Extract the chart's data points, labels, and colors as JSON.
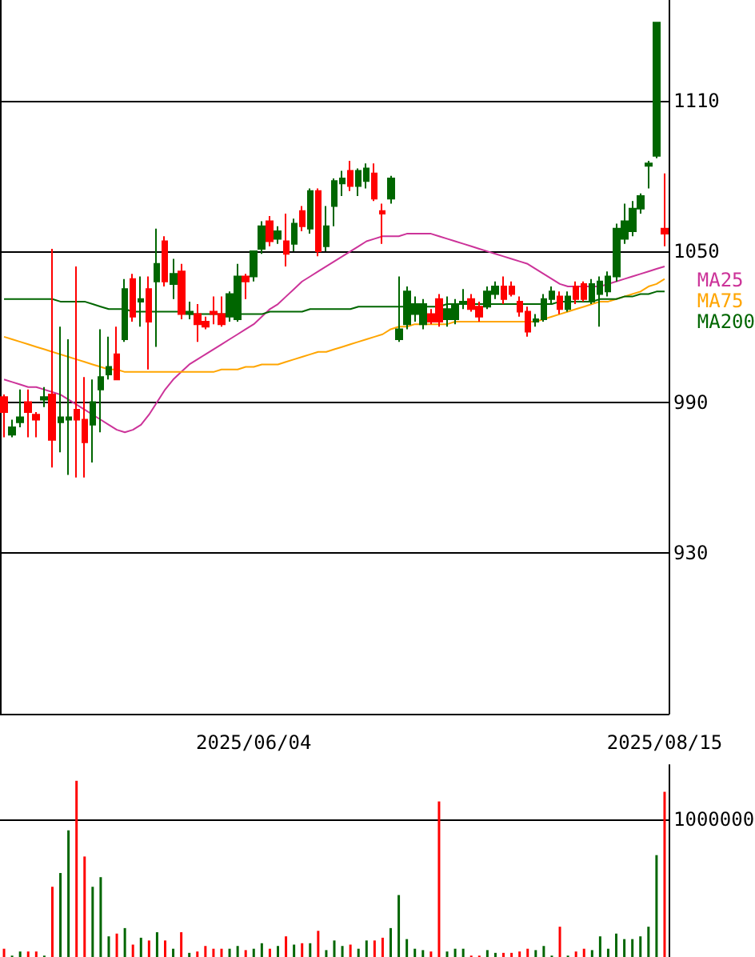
{
  "chart_data": [
    {
      "type": "candlestick",
      "categories": [
        null,
        null,
        null,
        null,
        null,
        null,
        null,
        null,
        null,
        null,
        null,
        null,
        null,
        null,
        null,
        null,
        null,
        null,
        null,
        null,
        null,
        null,
        null,
        null,
        null,
        null,
        null,
        null,
        null,
        null,
        null,
        "2025/06/04",
        null,
        null,
        null,
        null,
        null,
        null,
        null,
        null,
        null,
        null,
        null,
        null,
        null,
        null,
        null,
        null,
        null,
        null,
        null,
        null,
        null,
        null,
        null,
        null,
        null,
        null,
        null,
        null,
        null,
        null,
        null,
        null,
        null,
        null,
        null,
        null,
        null,
        null,
        null,
        null,
        null,
        null,
        null,
        null,
        null,
        null,
        null,
        null,
        null,
        null,
        "2025/08/15"
      ],
      "ohlc": [
        [
          992,
          993,
          976,
          986
        ],
        [
          977,
          983,
          976,
          980
        ],
        [
          982,
          995,
          980,
          984
        ],
        [
          990,
          995,
          976,
          986
        ],
        [
          985,
          986,
          976,
          983
        ],
        [
          991,
          996,
          988,
          992
        ],
        [
          993,
          1051,
          964,
          975
        ],
        [
          982,
          1020,
          970,
          984
        ],
        [
          983,
          1015,
          961,
          984
        ],
        [
          987,
          1044,
          960,
          983
        ],
        [
          983,
          1000,
          960,
          974
        ],
        [
          981,
          999,
          966,
          990
        ],
        [
          995,
          1019,
          978,
          1000
        ],
        [
          1001,
          1016,
          999,
          1004
        ],
        [
          1009,
          1020,
          999,
          999
        ],
        [
          1015,
          1039,
          1014,
          1035
        ],
        [
          1039,
          1041,
          1022,
          1024
        ],
        [
          1030,
          1040,
          1020,
          1031
        ],
        [
          1035,
          1040,
          1003,
          1022
        ],
        [
          1038,
          1059,
          1012,
          1045
        ],
        [
          1054,
          1056,
          1036,
          1038
        ],
        [
          1037,
          1047,
          1031,
          1041
        ],
        [
          1042,
          1045,
          1023,
          1025
        ],
        [
          1025,
          1030,
          1023,
          1026
        ],
        [
          1025,
          1029,
          1014,
          1021
        ],
        [
          1022,
          1024,
          1019,
          1020
        ],
        [
          1026,
          1032,
          1021,
          1025
        ],
        [
          1025,
          1032,
          1020,
          1021
        ],
        [
          1024,
          1034,
          1022,
          1033
        ],
        [
          1023,
          1045,
          1022,
          1040
        ],
        [
          1040,
          1041,
          1031,
          1038
        ],
        [
          1040,
          1050,
          1038,
          1050
        ],
        [
          1051,
          1062,
          1049,
          1060
        ],
        [
          1062,
          1064,
          1052,
          1054
        ],
        [
          1055,
          1060,
          1053,
          1058
        ],
        [
          1054,
          1065,
          1044,
          1049
        ],
        [
          1053,
          1063,
          1050,
          1061
        ],
        [
          1066,
          1068,
          1058,
          1060
        ],
        [
          1059,
          1075,
          1057,
          1074
        ],
        [
          1074,
          1075,
          1048,
          1050
        ],
        [
          1052,
          1068,
          1050,
          1060
        ],
        [
          1068,
          1079,
          1060,
          1078
        ],
        [
          1077,
          1082,
          1072,
          1079
        ],
        [
          1082,
          1086,
          1074,
          1076
        ],
        [
          1076,
          1083,
          1072,
          1082
        ],
        [
          1078,
          1085,
          1075,
          1083
        ],
        [
          1081,
          1085,
          1070,
          1071
        ],
        [
          1066,
          1069,
          1053,
          1065
        ],
        [
          1071,
          1080,
          1069,
          1079
        ],
        [
          1015,
          1040,
          1014,
          1019
        ],
        [
          1021,
          1036,
          1019,
          1034
        ],
        [
          1025,
          1032,
          1022,
          1029
        ],
        [
          1021,
          1031,
          1019,
          1029
        ],
        [
          1025,
          1027,
          1021,
          1022
        ],
        [
          1031,
          1033,
          1020,
          1022
        ],
        [
          1023,
          1032,
          1020,
          1027
        ],
        [
          1023,
          1031,
          1021,
          1029
        ],
        [
          1029,
          1035,
          1027,
          1030
        ],
        [
          1031,
          1033,
          1026,
          1027
        ],
        [
          1028,
          1030,
          1022,
          1024
        ],
        [
          1028,
          1036,
          1027,
          1034
        ],
        [
          1033,
          1038,
          1031,
          1036
        ],
        [
          1036,
          1040,
          1029,
          1031
        ],
        [
          1036,
          1038,
          1032,
          1033
        ],
        [
          1030,
          1032,
          1024,
          1026
        ],
        [
          1026,
          1028,
          1016,
          1018
        ],
        [
          1022,
          1025,
          1020,
          1023
        ],
        [
          1023,
          1033,
          1022,
          1031
        ],
        [
          1031,
          1036,
          1029,
          1034
        ],
        [
          1032,
          1034,
          1025,
          1027
        ],
        [
          1027,
          1034,
          1026,
          1032
        ],
        [
          1036,
          1038,
          1029,
          1031
        ],
        [
          1037,
          1038,
          1030,
          1031
        ],
        [
          1030,
          1039,
          1029,
          1037
        ],
        [
          1033,
          1040,
          1020,
          1038
        ],
        [
          1034,
          1042,
          1032,
          1040
        ],
        [
          1040,
          1061,
          1038,
          1059
        ],
        [
          1055,
          1069,
          1053,
          1062
        ],
        [
          1058,
          1070,
          1056,
          1067
        ],
        [
          1067,
          1073,
          1065,
          1072
        ],
        [
          1084,
          1086,
          1075,
          1085
        ],
        [
          1088,
          1141,
          1087,
          1141
        ],
        [
          1059,
          1081,
          1052,
          1057
        ]
      ],
      "colors": [
        "#ff0000",
        "#006600",
        "#006600",
        "#ff0000",
        "#ff0000",
        "#006600",
        "#ff0000",
        "#006600",
        "#006600",
        "#ff0000",
        "#ff0000",
        "#006600",
        "#006600",
        "#006600",
        "#ff0000",
        "#006600",
        "#ff0000",
        "#006600",
        "#ff0000",
        "#006600",
        "#ff0000",
        "#006600",
        "#ff0000",
        "#006600",
        "#ff0000",
        "#ff0000",
        "#ff0000",
        "#ff0000",
        "#006600",
        "#006600",
        "#ff0000",
        "#006600",
        "#006600",
        "#ff0000",
        "#006600",
        "#ff0000",
        "#006600",
        "#ff0000",
        "#006600",
        "#ff0000",
        "#006600",
        "#006600",
        "#006600",
        "#ff0000",
        "#006600",
        "#006600",
        "#ff0000",
        "#ff0000",
        "#006600",
        "#006600",
        "#006600",
        "#006600",
        "#006600",
        "#ff0000",
        "#ff0000",
        "#006600",
        "#006600",
        "#006600",
        "#ff0000",
        "#ff0000",
        "#006600",
        "#006600",
        "#ff0000",
        "#ff0000",
        "#ff0000",
        "#ff0000",
        "#006600",
        "#006600",
        "#006600",
        "#ff0000",
        "#006600",
        "#ff0000",
        "#ff0000",
        "#006600",
        "#006600",
        "#006600",
        "#006600",
        "#006600",
        "#006600",
        "#006600",
        "#006600",
        "#006600",
        "#ff0000"
      ],
      "series": [
        {
          "name": "MA25",
          "type": "line",
          "color": "#cc3399",
          "values": [
            999,
            998,
            997,
            996,
            996,
            995,
            994,
            993,
            991,
            989,
            987,
            985,
            983,
            981,
            979,
            978,
            979,
            981,
            985,
            990,
            995,
            999,
            1002,
            1005,
            1007,
            1009,
            1011,
            1013,
            1015,
            1017,
            1019,
            1021,
            1024,
            1027,
            1029,
            1032,
            1035,
            1038,
            1040,
            1042,
            1044,
            1046,
            1048,
            1050,
            1052,
            1054,
            1055,
            1056,
            1056,
            1056,
            1057,
            1057,
            1057,
            1057,
            1056,
            1055,
            1054,
            1053,
            1052,
            1051,
            1050,
            1049,
            1048,
            1047,
            1046,
            1045,
            1043,
            1041,
            1039,
            1037,
            1036,
            1036,
            1036,
            1036,
            1036,
            1037,
            1038,
            1039,
            1040,
            1041,
            1042,
            1043,
            1044
          ]
        },
        {
          "name": "MA75",
          "type": "line",
          "color": "#ffa500",
          "values": [
            1016,
            1015,
            1014,
            1013,
            1012,
            1011,
            1010,
            1009,
            1008,
            1007,
            1006,
            1005,
            1004,
            1003,
            1003,
            1002,
            1002,
            1002,
            1002,
            1002,
            1002,
            1002,
            1002,
            1002,
            1002,
            1002,
            1002,
            1003,
            1003,
            1003,
            1004,
            1004,
            1005,
            1005,
            1005,
            1006,
            1007,
            1008,
            1009,
            1010,
            1010,
            1011,
            1012,
            1013,
            1014,
            1015,
            1016,
            1017,
            1019,
            1020,
            1020,
            1021,
            1021,
            1021,
            1021,
            1021,
            1022,
            1022,
            1022,
            1022,
            1022,
            1022,
            1022,
            1022,
            1022,
            1022,
            1022,
            1023,
            1024,
            1025,
            1026,
            1027,
            1028,
            1029,
            1030,
            1030,
            1031,
            1032,
            1033,
            1034,
            1036,
            1037,
            1039
          ]
        },
        {
          "name": "MA200",
          "type": "line",
          "color": "#006600",
          "values": [
            1031,
            1031,
            1031,
            1031,
            1031,
            1031,
            1031,
            1030,
            1030,
            1030,
            1030,
            1029,
            1028,
            1027,
            1027,
            1027,
            1026,
            1026,
            1026,
            1026,
            1026,
            1026,
            1026,
            1025,
            1025,
            1025,
            1025,
            1025,
            1025,
            1025,
            1025,
            1025,
            1025,
            1026,
            1026,
            1026,
            1026,
            1026,
            1027,
            1027,
            1027,
            1027,
            1027,
            1027,
            1028,
            1028,
            1028,
            1028,
            1028,
            1028,
            1028,
            1028,
            1028,
            1028,
            1028,
            1029,
            1029,
            1029,
            1029,
            1029,
            1029,
            1029,
            1029,
            1029,
            1029,
            1029,
            1029,
            1029,
            1029,
            1030,
            1030,
            1030,
            1030,
            1030,
            1031,
            1031,
            1031,
            1032,
            1032,
            1033,
            1033,
            1034,
            1034
          ]
        }
      ],
      "ylim": [
        866,
        1150
      ],
      "yticks": [
        930,
        990,
        1050,
        1110
      ],
      "grid": true,
      "legend": "right",
      "marker": "none"
    },
    {
      "type": "bar",
      "tick_labels": "y",
      "grid": "y",
      "ylim": [
        0,
        1395000
      ],
      "yticks": [
        {
          "value": 0,
          "label": null
        },
        1000000
      ],
      "categories": [
        null,
        null,
        null,
        null,
        null,
        null,
        null,
        null,
        null,
        null,
        null,
        null,
        null,
        null,
        null,
        null,
        null,
        null,
        null,
        null,
        null,
        null,
        null,
        null,
        null,
        null,
        null,
        null,
        null,
        null,
        null,
        null,
        null,
        null,
        null,
        null,
        null,
        null,
        null,
        null,
        null,
        null,
        null,
        null,
        null,
        null,
        null,
        null,
        null,
        null,
        null,
        null,
        null,
        null,
        null,
        null,
        null,
        null,
        null,
        null,
        null,
        null,
        null,
        null,
        null,
        null,
        null,
        null,
        null,
        null,
        null,
        null,
        null,
        null,
        null,
        null,
        null,
        null,
        null,
        null,
        null,
        null,
        null
      ],
      "values": [
        60000,
        10000,
        40000,
        40000,
        40000,
        10000,
        510000,
        610000,
        920000,
        1280000,
        730000,
        510000,
        580000,
        150000,
        170000,
        210000,
        90000,
        140000,
        120000,
        180000,
        120000,
        60000,
        180000,
        30000,
        40000,
        80000,
        60000,
        60000,
        60000,
        80000,
        50000,
        60000,
        100000,
        60000,
        80000,
        150000,
        90000,
        100000,
        100000,
        190000,
        50000,
        120000,
        80000,
        90000,
        60000,
        120000,
        120000,
        140000,
        210000,
        450000,
        130000,
        60000,
        50000,
        40000,
        1130000,
        40000,
        60000,
        60000,
        10000,
        10000,
        50000,
        30000,
        30000,
        30000,
        40000,
        60000,
        50000,
        80000,
        10000,
        220000,
        10000,
        40000,
        60000,
        50000,
        150000,
        60000,
        170000,
        130000,
        130000,
        150000,
        220000,
        740000,
        1200000
      ],
      "colors": [
        "#ff0000",
        "#006600",
        "#006600",
        "#ff0000",
        "#ff0000",
        "#006600",
        "#ff0000",
        "#006600",
        "#006600",
        "#ff0000",
        "#ff0000",
        "#006600",
        "#006600",
        "#006600",
        "#ff0000",
        "#006600",
        "#ff0000",
        "#006600",
        "#ff0000",
        "#006600",
        "#ff0000",
        "#006600",
        "#ff0000",
        "#006600",
        "#ff0000",
        "#ff0000",
        "#ff0000",
        "#ff0000",
        "#006600",
        "#006600",
        "#ff0000",
        "#006600",
        "#006600",
        "#ff0000",
        "#006600",
        "#ff0000",
        "#006600",
        "#ff0000",
        "#006600",
        "#ff0000",
        "#006600",
        "#006600",
        "#006600",
        "#ff0000",
        "#006600",
        "#006600",
        "#ff0000",
        "#ff0000",
        "#006600",
        "#006600",
        "#006600",
        "#006600",
        "#006600",
        "#ff0000",
        "#ff0000",
        "#006600",
        "#006600",
        "#006600",
        "#ff0000",
        "#ff0000",
        "#006600",
        "#006600",
        "#ff0000",
        "#ff0000",
        "#ff0000",
        "#ff0000",
        "#006600",
        "#006600",
        "#006600",
        "#ff0000",
        "#006600",
        "#ff0000",
        "#ff0000",
        "#006600",
        "#006600",
        "#006600",
        "#006600",
        "#006600",
        "#006600",
        "#006600",
        "#006600",
        "#006600",
        "#ff0000"
      ]
    }
  ]
}
